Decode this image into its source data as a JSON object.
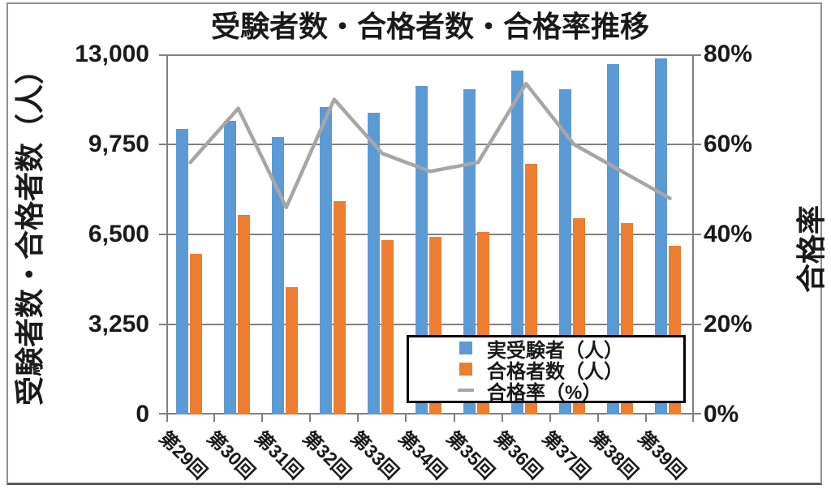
{
  "chart_data": {
    "type": "bar",
    "subtype": "clustered-bars-with-line-overlay",
    "title": "受験者数・合格者数・合格率推移",
    "categories": [
      "第29回",
      "第30回",
      "第31回",
      "第32回",
      "第33回",
      "第34回",
      "第35回",
      "第36回",
      "第37回",
      "第38回",
      "第39回"
    ],
    "series": [
      {
        "name": "実受験者（人）",
        "type": "bar",
        "axis": "left",
        "color": "#5B9BD5",
        "values": [
          10300,
          10600,
          10000,
          11100,
          10900,
          11850,
          11750,
          12400,
          11750,
          12650,
          12850
        ]
      },
      {
        "name": "合格者数（人）",
        "type": "bar",
        "axis": "left",
        "color": "#ED7D31",
        "values": [
          5800,
          7200,
          4600,
          7700,
          6300,
          6400,
          6600,
          9050,
          7100,
          6900,
          6100
        ]
      },
      {
        "name": "合格率（%）",
        "type": "line",
        "axis": "right",
        "color": "#A6A6A6",
        "values": [
          56,
          68,
          46,
          70,
          58,
          54,
          56,
          73.5,
          60,
          54,
          48
        ]
      }
    ],
    "left_axis": {
      "title": "受験者数・合格者数（人）",
      "min": 0,
      "max": 13000,
      "ticks": [
        "13,000",
        "9,750",
        "6,500",
        "3,250",
        "0"
      ]
    },
    "right_axis": {
      "title": "合格率",
      "min": 0,
      "max": 80,
      "ticks": [
        "80%",
        "60%",
        "40%",
        "20%",
        "0%"
      ]
    },
    "legend_position": "inside-bottom-right",
    "grid": "horizontal-on"
  },
  "colors": {
    "bar_examinees": "#5B9BD5",
    "bar_passers": "#ED7D31",
    "line_pass_rate": "#A6A6A6",
    "gridline": "#808080",
    "text": "#1A1A1A",
    "legend_border": "#000000",
    "frame_border": "#8F8F8F",
    "frame_border_bottom": "#595959",
    "background": "#FFFFFF"
  }
}
